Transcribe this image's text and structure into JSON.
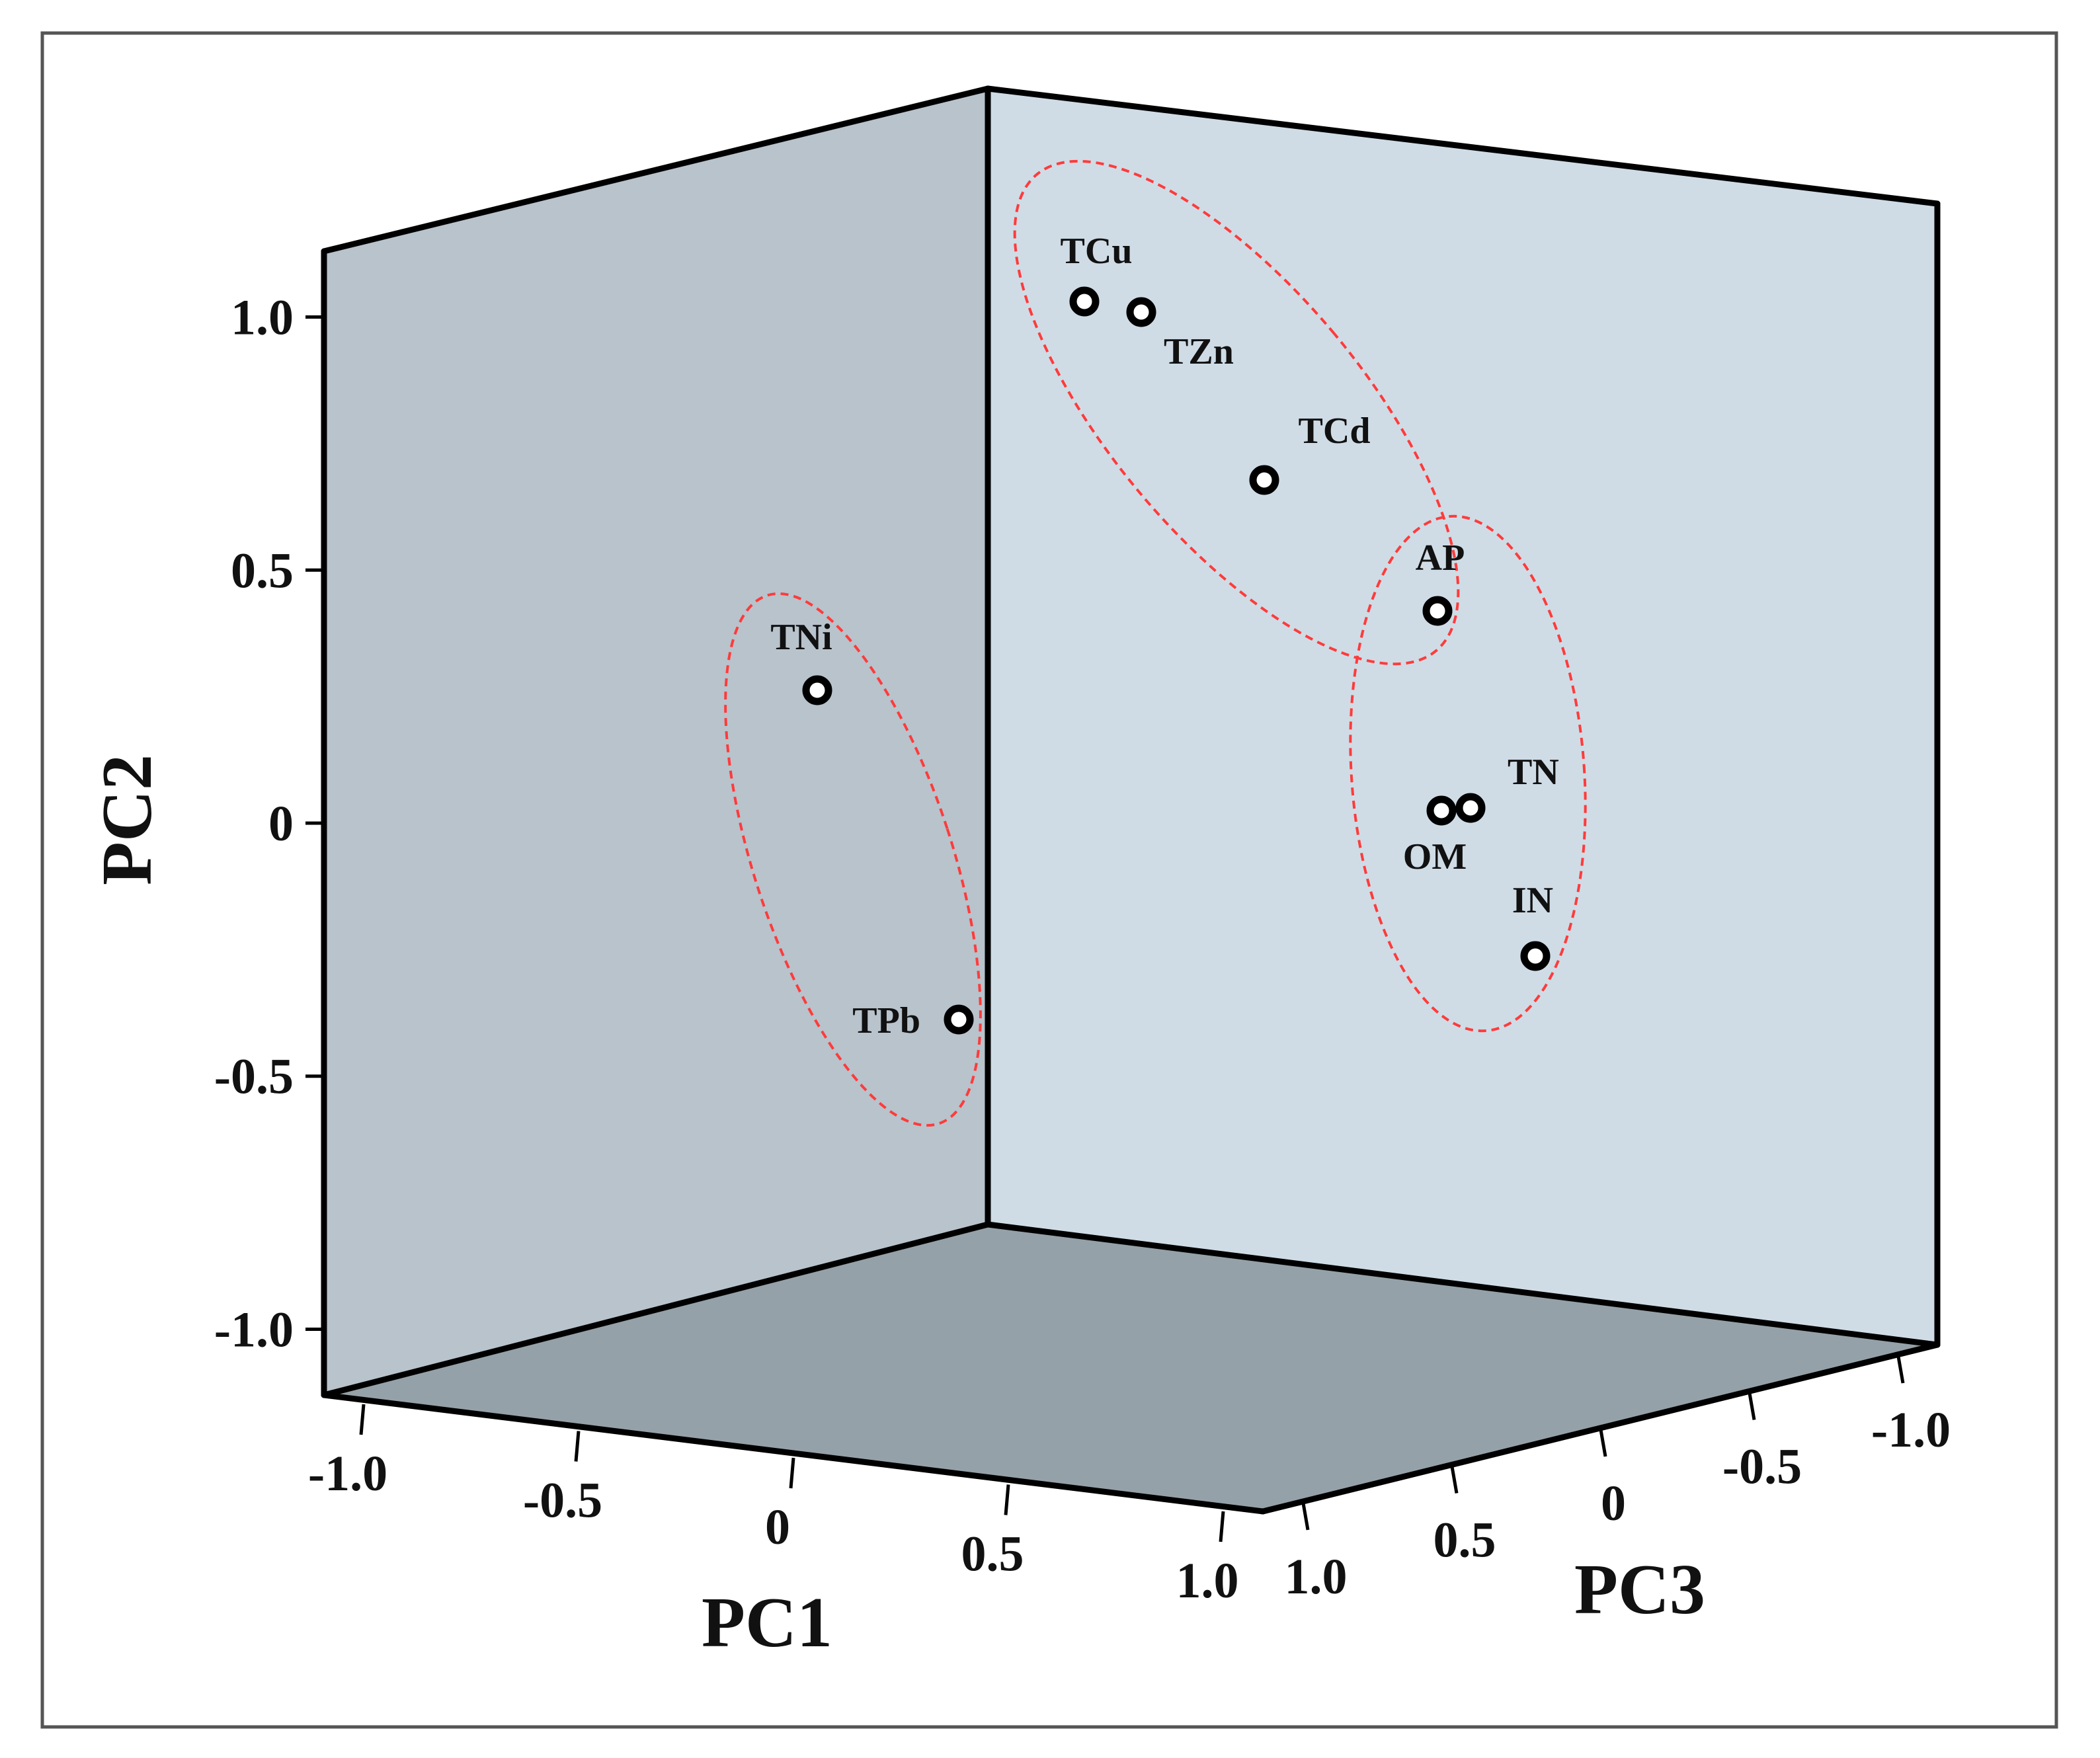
{
  "chart_data": {
    "type": "scatter",
    "projection": "3d",
    "title": "",
    "xlabel": "PC1",
    "ylabel": "PC2",
    "zlabel": "PC3",
    "xlim": [
      -1.0,
      1.0
    ],
    "ylim": [
      -1.0,
      1.0
    ],
    "zlim": [
      -1.0,
      1.0
    ],
    "x_ticks": [
      "-1.0",
      "-0.5",
      "0",
      "0.5",
      "1.0"
    ],
    "y_ticks": [
      "-1.0",
      "-0.5",
      "0",
      "0.5",
      "1.0"
    ],
    "z_ticks": [
      "1.0",
      "0.5",
      "0",
      "-0.5",
      "-1.0"
    ],
    "points": [
      {
        "label": "TCu",
        "x": 0.73,
        "y": 0.98,
        "z": 0.97
      },
      {
        "label": "TZn",
        "x": 0.76,
        "y": 0.97,
        "z": 0.88
      },
      {
        "label": "TCd",
        "x": 0.65,
        "y": 0.7,
        "z": 0.65
      },
      {
        "label": "AP",
        "x": 0.59,
        "y": 0.47,
        "z": 0.35
      },
      {
        "label": "TN",
        "x": 0.86,
        "y": 0.05,
        "z": 0.13
      },
      {
        "label": "OM",
        "x": 0.85,
        "y": 0.05,
        "z": 0.19
      },
      {
        "label": "IN",
        "x": 0.71,
        "y": -0.24,
        "z": 0.12
      },
      {
        "label": "TNi",
        "x": 0.17,
        "y": 0.62,
        "z": 1.0
      },
      {
        "label": "TPb",
        "x": 0.8,
        "y": -0.12,
        "z": 1.05
      }
    ],
    "clusters": [
      {
        "members": [
          "TCu",
          "TZn",
          "TCd",
          "AP"
        ]
      },
      {
        "members": [
          "AP",
          "TN",
          "OM",
          "IN"
        ]
      },
      {
        "members": [
          "TNi",
          "TPb"
        ]
      }
    ],
    "grid": false,
    "legend": "none",
    "colors": {
      "left_wall": "#b8c3cc",
      "back_wall": "#cfdce6",
      "floor": "#95a1a8",
      "edges": "#000000",
      "cluster_outline": "#ff3b3b",
      "marker": "#000000"
    }
  }
}
